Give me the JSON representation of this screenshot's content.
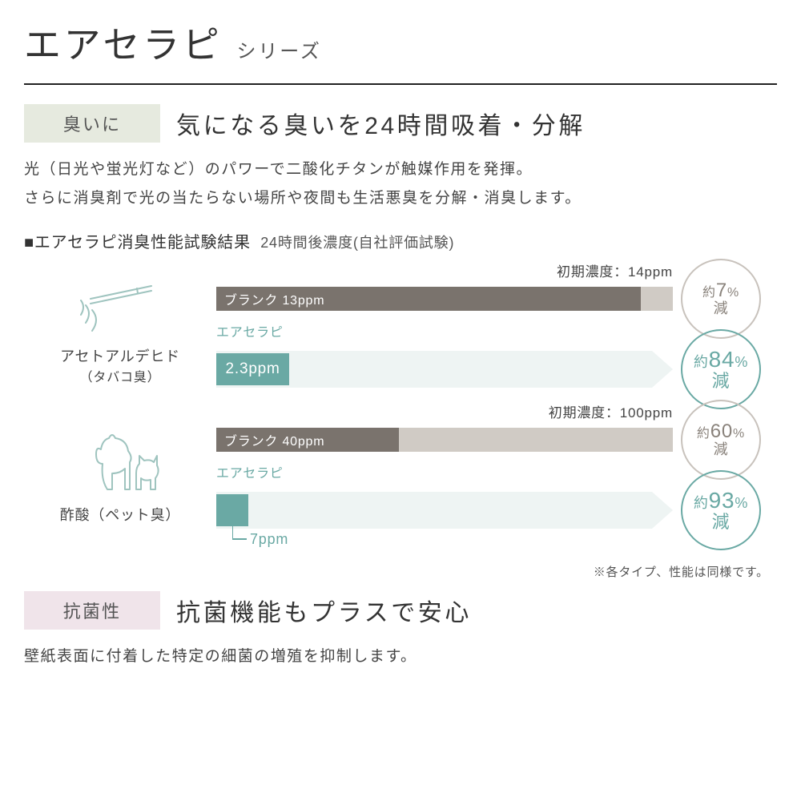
{
  "title": {
    "main": "エアセラピ",
    "sub": "シリーズ"
  },
  "section_odor": {
    "badge": "臭いに",
    "headline": "気になる臭いを24時間吸着・分解",
    "body_l1": "光（日光や蛍光灯など）のパワーで二酸化チタンが触媒作用を発揮。",
    "body_l2": "さらに消臭剤で光の当たらない場所や夜間も生活悪臭を分解・消臭します。",
    "chart_title": "■エアセラピ消臭性能試験結果",
    "chart_title_sub": "24時間後濃度(自社評価試験)"
  },
  "chart": {
    "colors": {
      "track_bg": "#d0cbc5",
      "blank_bar": "#7a736d",
      "product_bar": "#6aa9a4",
      "arrow_fill": "#eef4f3",
      "circle_gray_border": "#c8c2bc",
      "circle_gray_text": "#8a837c",
      "circle_teal": "#6aa9a4"
    },
    "product_name": "エアセラピ",
    "items": [
      {
        "id": "acetaldehyde",
        "icon": "cigarette",
        "label": "アセトアルデヒド",
        "sublabel": "（タバコ臭）",
        "initial_ppm": 14,
        "initial_label": "初期濃度：14ppm",
        "blank_ppm": 13,
        "blank_label": "ブランク 13ppm",
        "blank_bar_pct": 93,
        "product_ppm": 2.3,
        "product_label": "2.3ppm",
        "product_bar_pct": 16,
        "blank_reduction_txt": "約7%",
        "blank_reduction_suffix": "減",
        "product_reduction_txt": "約84%",
        "product_reduction_suffix": "減"
      },
      {
        "id": "acetic",
        "icon": "pet",
        "label": "酢酸（ペット臭）",
        "sublabel": "",
        "initial_ppm": 100,
        "initial_label": "初期濃度：100ppm",
        "blank_ppm": 40,
        "blank_label": "ブランク 40ppm",
        "blank_bar_pct": 40,
        "product_ppm": 7,
        "product_label": "7ppm",
        "product_bar_pct": 7,
        "blank_reduction_txt": "約60%",
        "blank_reduction_suffix": "減",
        "product_reduction_txt": "約93%",
        "product_reduction_suffix": "減"
      }
    ],
    "footnote": "※各タイプ、性能は同様です。"
  },
  "section_antibact": {
    "badge": "抗菌性",
    "headline": "抗菌機能もプラスで安心",
    "body": "壁紙表面に付着した特定の細菌の増殖を抑制します。"
  }
}
